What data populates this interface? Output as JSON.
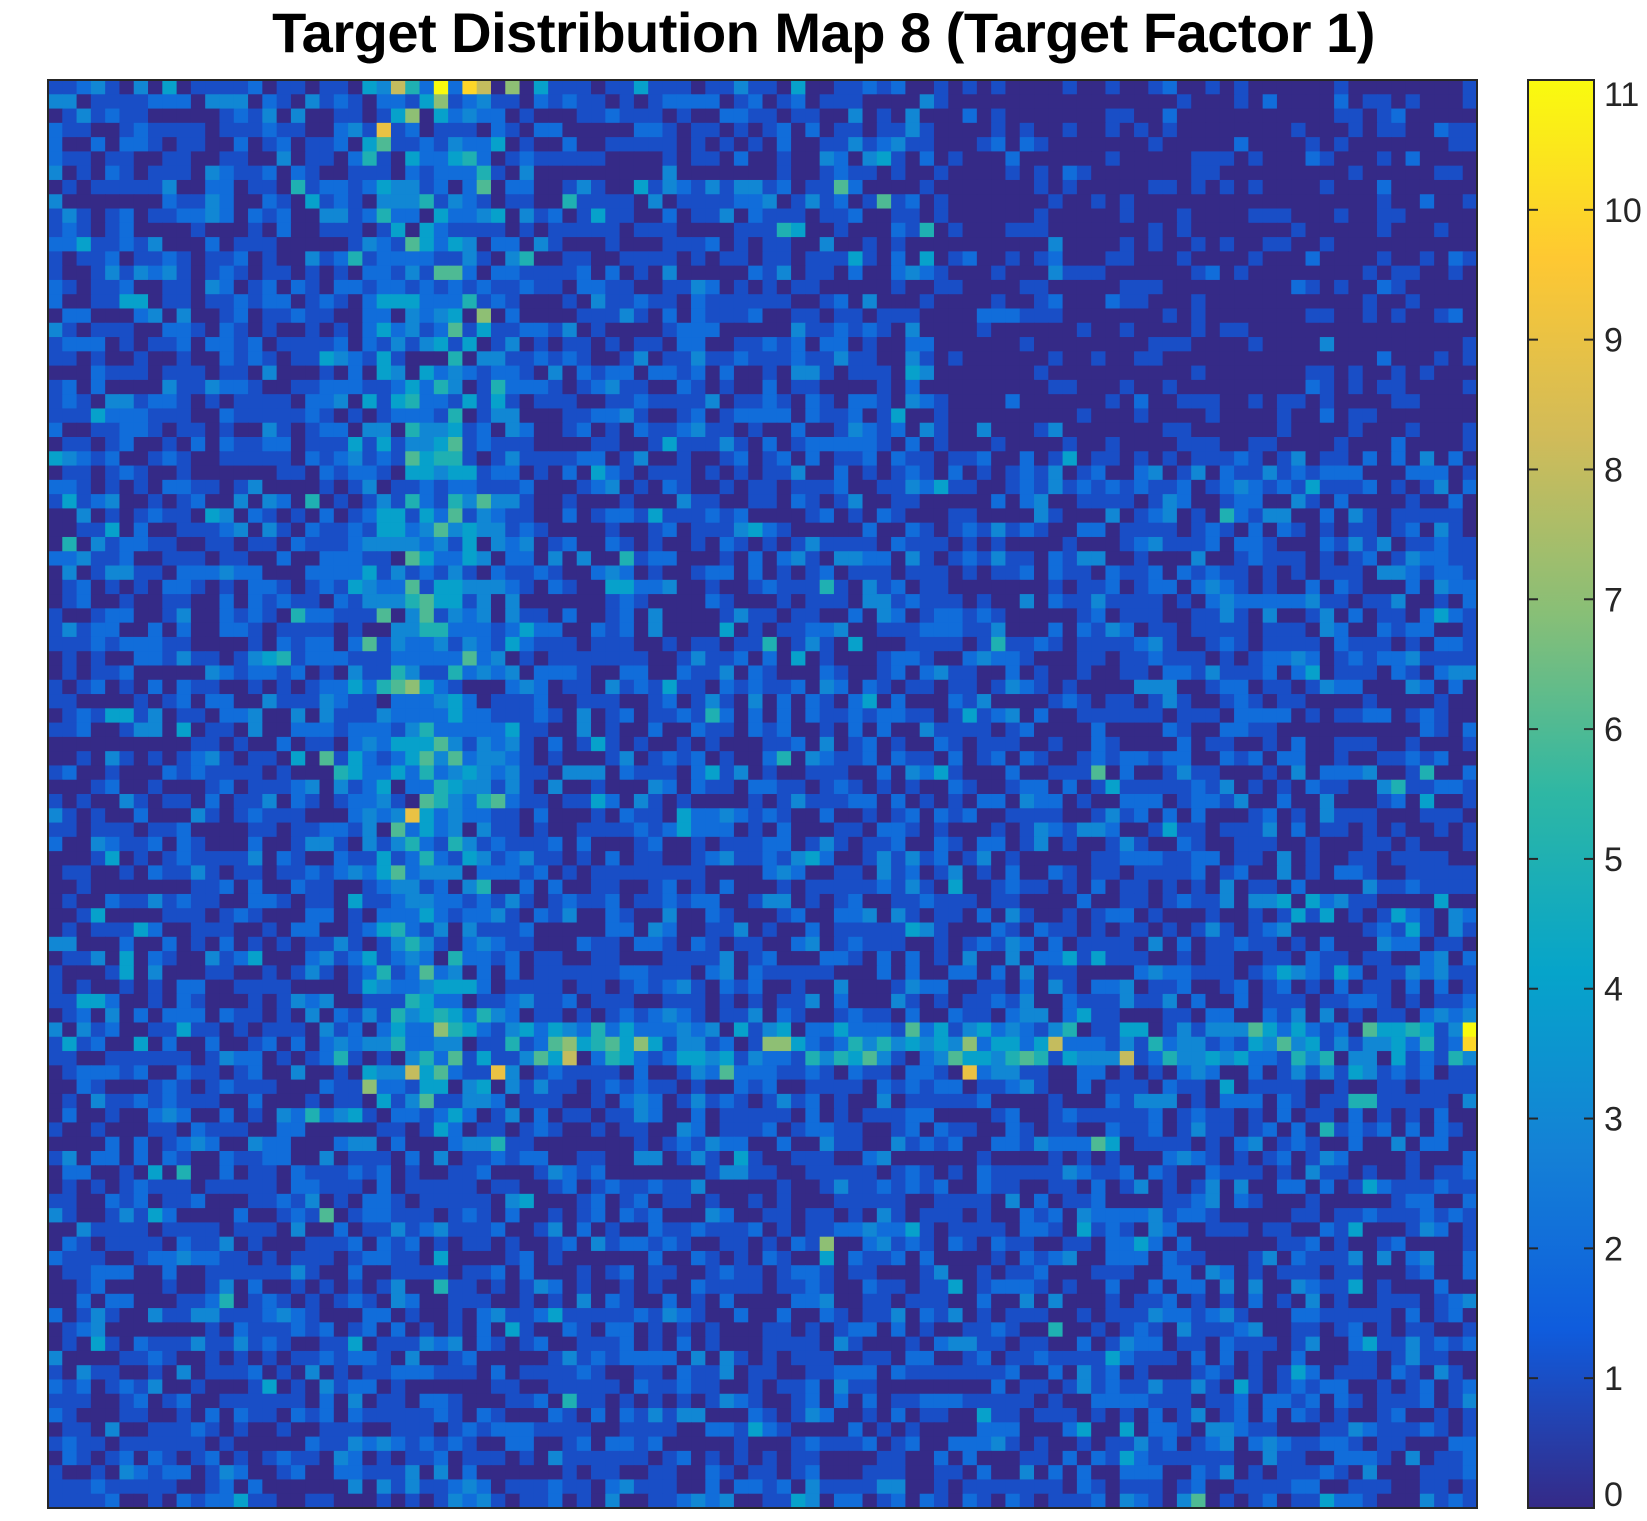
{
  "chart_data": {
    "type": "heatmap",
    "title": "Target Distribution Map 8 (Target Factor 1)",
    "grid_size": [
      100,
      100
    ],
    "colorbar": {
      "min": 0,
      "max": 11,
      "ticks": [
        "0",
        "1",
        "2",
        "3",
        "4",
        "5",
        "6",
        "7",
        "8",
        "9",
        "10",
        "11"
      ],
      "colormap": "parula",
      "colormap_stops": [
        "#352a87",
        "#0f5cdd",
        "#1481d6",
        "#06a4ca",
        "#2eb7a4",
        "#87bf77",
        "#d1bb59",
        "#fec832",
        "#f9fb0e"
      ]
    },
    "axes_visible": false,
    "grid": false,
    "field_description": {
      "background_mean": 1.0,
      "features": [
        {
          "kind": "vertical_band",
          "column_center": 26,
          "column_width": 10,
          "rows": [
            0,
            72
          ],
          "mean_value": 2.8
        },
        {
          "kind": "horizontal_band",
          "row_center": 67,
          "row_height": 3,
          "columns": [
            32,
            100
          ],
          "mean_value": 3.4
        },
        {
          "kind": "sparse_region",
          "rows": [
            0,
            25
          ],
          "columns": [
            62,
            100
          ],
          "mean_value": 0.3
        }
      ],
      "peaks": [
        {
          "row": 0,
          "col": 24,
          "value": 8
        },
        {
          "row": 0,
          "col": 27,
          "value": 11
        },
        {
          "row": 0,
          "col": 30,
          "value": 8
        },
        {
          "row": 0,
          "col": 32,
          "value": 7
        },
        {
          "row": 0,
          "col": 29,
          "value": 10
        },
        {
          "row": 3,
          "col": 23,
          "value": 9
        },
        {
          "row": 66,
          "col": 99,
          "value": 11
        },
        {
          "row": 67,
          "col": 99,
          "value": 10
        },
        {
          "row": 69,
          "col": 64,
          "value": 9
        },
        {
          "row": 69,
          "col": 31,
          "value": 9
        },
        {
          "row": 68,
          "col": 36,
          "value": 8
        },
        {
          "row": 48,
          "col": 73,
          "value": 6
        },
        {
          "row": 99,
          "col": 80,
          "value": 6
        }
      ]
    }
  }
}
